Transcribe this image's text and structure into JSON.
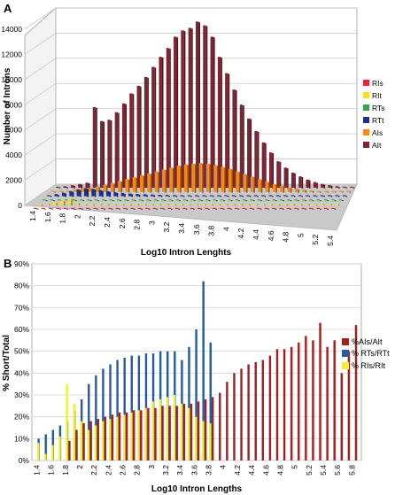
{
  "chart_data": [
    {
      "panel": "A",
      "type": "bar",
      "ylabel": "Number of Introns",
      "xlabel": "Log10 Intron Lenghts",
      "ylim": [
        0,
        14000
      ],
      "yticks": [
        0,
        2000,
        4000,
        6000,
        8000,
        10000,
        12000,
        14000
      ],
      "ytick_labels": [
        "0",
        "2000",
        "4000",
        "6000",
        "8000",
        "10000",
        "12000",
        "14000"
      ],
      "categories": [
        "1.4",
        "1.5",
        "1.6",
        "1.7",
        "1.8",
        "1.9",
        "2",
        "2.1",
        "2.2",
        "2.3",
        "2.4",
        "2.5",
        "2.6",
        "2.7",
        "2.8",
        "2.9",
        "3",
        "3.1",
        "3.2",
        "3.3",
        "3.4",
        "3.5",
        "3.6",
        "3.7",
        "3.8",
        "3.9",
        "4",
        "4.1",
        "4.2",
        "4.3",
        "4.4",
        "4.5",
        "4.6",
        "4.7",
        "4.8",
        "4.9",
        "5",
        "5.1",
        "5.2",
        "5.3",
        "5.4"
      ],
      "xtick_labels": [
        "1.4",
        "1.6",
        "1.8",
        "2",
        "2.2",
        "2.4",
        "2.6",
        "2.8",
        "3",
        "3.2",
        "3.4",
        "3.6",
        "3.8",
        "4",
        "4.2",
        "4.4",
        "4.6",
        "4.8",
        "5",
        "5.2",
        "5.4"
      ],
      "legend_position": "right",
      "grid": true,
      "series": [
        {
          "name": "RIs",
          "color": "#e8243a",
          "values": [
            5,
            5,
            5,
            5,
            5,
            5,
            5,
            5,
            5,
            5,
            5,
            5,
            5,
            5,
            5,
            5,
            5,
            5,
            5,
            5,
            5,
            5,
            5,
            5,
            5,
            5,
            5,
            5,
            5,
            5,
            5,
            5,
            5,
            5,
            5,
            5,
            5,
            5,
            5,
            5,
            5
          ]
        },
        {
          "name": "RIt",
          "color": "#f2e02c",
          "values": [
            20,
            40,
            180,
            320,
            450,
            160,
            60,
            30,
            20,
            10,
            10,
            10,
            10,
            10,
            10,
            10,
            10,
            10,
            10,
            10,
            10,
            10,
            10,
            10,
            10,
            10,
            10,
            10,
            10,
            10,
            10,
            10,
            10,
            10,
            10,
            10,
            10,
            10,
            10,
            10,
            10
          ]
        },
        {
          "name": "RTs",
          "color": "#3aa24a",
          "values": [
            5,
            10,
            20,
            30,
            40,
            50,
            40,
            30,
            20,
            15,
            10,
            10,
            10,
            10,
            10,
            10,
            10,
            10,
            10,
            10,
            10,
            10,
            10,
            10,
            10,
            10,
            10,
            10,
            10,
            10,
            10,
            10,
            10,
            10,
            10,
            10,
            10,
            10,
            10,
            10,
            10
          ]
        },
        {
          "name": "RTt",
          "color": "#1d2f8f",
          "values": [
            80,
            160,
            260,
            380,
            520,
            620,
            560,
            460,
            380,
            300,
            240,
            200,
            170,
            150,
            130,
            110,
            100,
            90,
            80,
            70,
            60,
            50,
            40,
            30,
            25,
            20,
            15,
            10,
            10,
            10,
            10,
            10,
            10,
            10,
            10,
            10,
            10,
            10,
            10,
            10,
            10
          ]
        },
        {
          "name": "AIs",
          "color": "#f28b1c",
          "values": [
            30,
            60,
            120,
            200,
            260,
            300,
            420,
            560,
            700,
            860,
            1000,
            1150,
            1300,
            1450,
            1600,
            1750,
            1900,
            2050,
            2150,
            2200,
            2250,
            2200,
            2100,
            1950,
            1800,
            1600,
            1400,
            1200,
            1000,
            800,
            620,
            480,
            360,
            260,
            180,
            120,
            80,
            50,
            30,
            20,
            10
          ]
        },
        {
          "name": "AIt",
          "color": "#7d2534",
          "values": [
            40,
            120,
            200,
            300,
            400,
            6400,
            5300,
            5400,
            6000,
            6700,
            7500,
            8100,
            8800,
            9600,
            10400,
            11100,
            12000,
            12500,
            12700,
            13200,
            12900,
            12000,
            10400,
            9100,
            7800,
            6600,
            5500,
            4500,
            3600,
            2800,
            2100,
            1600,
            1200,
            900,
            650,
            450,
            300,
            200,
            120,
            60,
            30
          ]
        }
      ]
    },
    {
      "panel": "B",
      "type": "bar",
      "ylabel": "% Short/Total",
      "xlabel": "Log10 Intron Lengths",
      "ylim": [
        0,
        90
      ],
      "yticks": [
        0,
        10,
        20,
        30,
        40,
        50,
        60,
        70,
        80,
        90
      ],
      "ytick_labels": [
        "0%",
        "10%",
        "20%",
        "30%",
        "40%",
        "50%",
        "60%",
        "70%",
        "80%",
        "90%"
      ],
      "categories": [
        "1.4",
        "1.5",
        "1.6",
        "1.7",
        "1.8",
        "1.9",
        "2",
        "2.1",
        "2.2",
        "2.3",
        "2.4",
        "2.5",
        "2.6",
        "2.7",
        "2.8",
        "2.9",
        "3",
        "3.1",
        "3.2",
        "3.3",
        "3.4",
        "3.5",
        "3.6",
        "3.7",
        "3.8",
        "3.9",
        "4",
        "4.1",
        "4.2",
        "4.3",
        "4.4",
        "4.5",
        "4.6",
        "4.7",
        "4.8",
        "4.9",
        "5",
        "5.1",
        "5.2",
        "5.3",
        "5.4",
        "5.5",
        "5.6",
        "5.7",
        "5.8"
      ],
      "xtick_labels": [
        "1.4",
        "1.6",
        "1.8",
        "2",
        "2.2",
        "2.4",
        "2.6",
        "2.8",
        "3",
        "3.2",
        "3.4",
        "3.6",
        "3.8",
        "4",
        "4.2",
        "4.4",
        "4.6",
        "4.8",
        "5",
        "5.2",
        "5.4",
        "5.6",
        "5.8"
      ],
      "legend_position": "right",
      "grid": true,
      "series": [
        {
          "name": "%AIs/AIt",
          "color": "#a32020",
          "values": [
            null,
            null,
            null,
            null,
            9,
            14,
            17,
            18,
            19,
            20,
            21,
            22,
            22,
            23,
            23,
            24,
            24,
            25,
            25,
            25,
            26,
            26,
            27,
            28,
            29,
            31,
            36,
            40,
            42,
            44,
            45,
            46,
            48,
            51,
            51,
            52,
            54,
            57,
            55,
            63,
            52,
            55,
            40,
            50,
            62
          ]
        },
        {
          "name": "% RTs/RTt",
          "color": "#275ba0",
          "values": [
            10,
            12,
            14,
            16,
            18,
            23,
            28,
            35,
            39,
            42,
            44,
            46,
            47,
            48,
            48,
            49,
            49,
            50,
            50,
            50,
            46,
            52,
            60,
            82,
            54,
            null,
            null,
            null,
            null,
            null,
            null,
            null,
            null,
            null,
            null,
            null,
            null,
            null,
            null,
            null,
            null,
            null,
            null,
            null,
            null
          ]
        },
        {
          "name": "% RIs/RIt",
          "color": "#f2ee3a",
          "values": [
            8,
            3,
            7,
            11,
            35,
            26,
            18,
            14,
            16,
            18,
            19,
            20,
            21,
            22,
            23,
            24,
            27,
            28,
            29,
            30,
            26,
            24,
            20,
            18,
            17,
            null,
            null,
            null,
            null,
            null,
            null,
            null,
            null,
            null,
            null,
            null,
            null,
            null,
            null,
            null,
            null,
            null,
            null,
            null,
            null
          ]
        }
      ]
    }
  ],
  "panel_labels": {
    "a": "A",
    "b": "B"
  }
}
